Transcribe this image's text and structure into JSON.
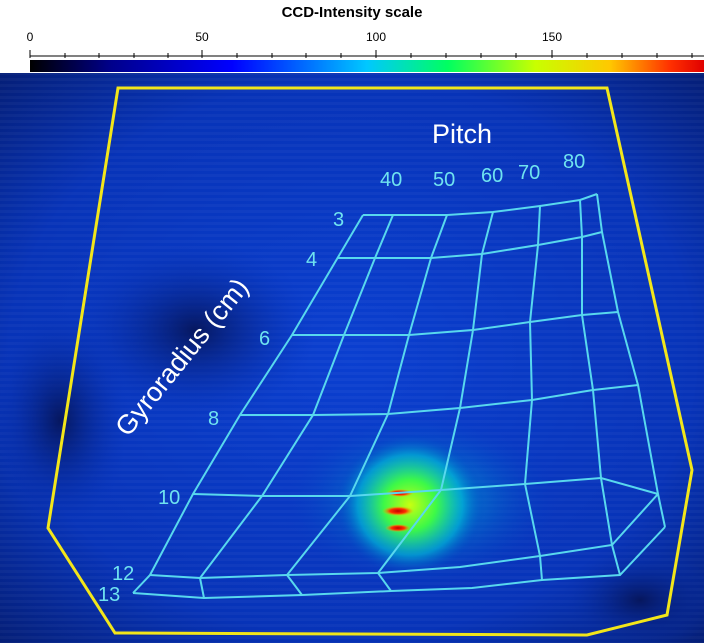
{
  "colorbar": {
    "title": "CCD-Intensity scale",
    "ticks": [
      {
        "value": 0,
        "label": "0"
      },
      {
        "value": 50,
        "label": "50"
      },
      {
        "value": 100,
        "label": "100"
      },
      {
        "value": 150,
        "label": "150"
      }
    ],
    "max": 185,
    "colors": [
      "#000000",
      "#00008b",
      "#0000ff",
      "#00c8ff",
      "#00ff60",
      "#c8ff00",
      "#ffc800",
      "#ff3000",
      "#e00000"
    ]
  },
  "grid": {
    "pitch_title": "Pitch",
    "gyroradius_title": "Gyroradius (cm)",
    "pitch_labels": [
      "40",
      "50",
      "60",
      "70",
      "80"
    ],
    "gyroradius_labels": [
      "3",
      "4",
      "6",
      "8",
      "10",
      "12",
      "13"
    ],
    "line_color": "#58d8ee"
  },
  "colors": {
    "background_blue": "#0a36c8",
    "boundary": "#f2e61a",
    "hotspot": "#e02000"
  }
}
